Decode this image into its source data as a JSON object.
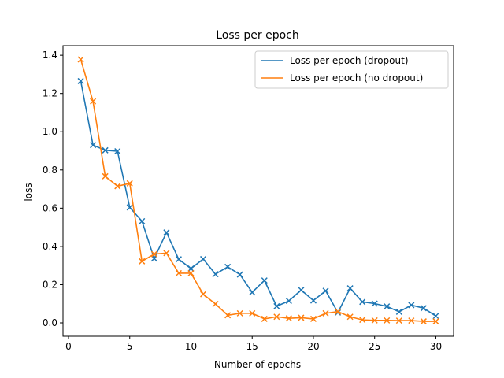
{
  "chart_data": {
    "type": "line",
    "title": "Loss per epoch",
    "xlabel": "Number of epochs",
    "ylabel": "loss",
    "xlim": [
      -0.45,
      31.45
    ],
    "ylim": [
      -0.07,
      1.45
    ],
    "xticks": [
      0,
      5,
      10,
      15,
      20,
      25,
      30
    ],
    "yticks": [
      0.0,
      0.2,
      0.4,
      0.6,
      0.8,
      1.0,
      1.2,
      1.4
    ],
    "xtick_labels": [
      "0",
      "5",
      "10",
      "15",
      "20",
      "25",
      "30"
    ],
    "ytick_labels": [
      "0.0",
      "0.2",
      "0.4",
      "0.6",
      "0.8",
      "1.0",
      "1.2",
      "1.4"
    ],
    "grid": false,
    "legend_position": "top-right",
    "marker": "x",
    "x": [
      1,
      2,
      3,
      4,
      5,
      6,
      7,
      8,
      9,
      10,
      11,
      12,
      13,
      14,
      15,
      16,
      17,
      18,
      19,
      20,
      21,
      22,
      23,
      24,
      25,
      26,
      27,
      28,
      29,
      30
    ],
    "series": [
      {
        "name": "Loss per epoch (dropout)",
        "color": "#1f77b4",
        "values": [
          1.265,
          0.93,
          0.903,
          0.898,
          0.604,
          0.532,
          0.337,
          0.473,
          0.333,
          0.284,
          0.334,
          0.255,
          0.293,
          0.253,
          0.16,
          0.222,
          0.087,
          0.115,
          0.172,
          0.117,
          0.168,
          0.054,
          0.181,
          0.11,
          0.101,
          0.086,
          0.058,
          0.093,
          0.077,
          0.036
        ]
      },
      {
        "name": "Loss per epoch (no dropout)",
        "color": "#ff7f0e",
        "values": [
          1.378,
          1.159,
          0.767,
          0.715,
          0.73,
          0.322,
          0.36,
          0.365,
          0.26,
          0.26,
          0.15,
          0.099,
          0.04,
          0.05,
          0.05,
          0.021,
          0.032,
          0.024,
          0.027,
          0.021,
          0.05,
          0.059,
          0.032,
          0.016,
          0.013,
          0.013,
          0.012,
          0.012,
          0.008,
          0.008
        ]
      }
    ]
  }
}
